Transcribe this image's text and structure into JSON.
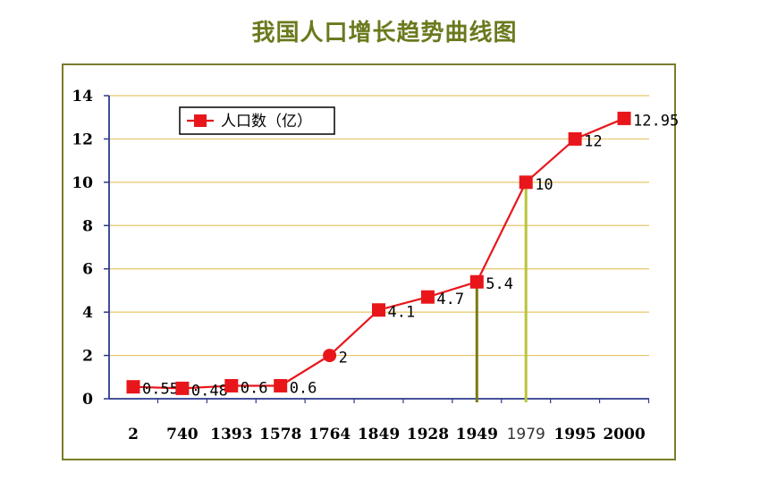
{
  "chart_data": {
    "type": "line",
    "title": "我国人口增长趋势曲线图",
    "categories": [
      "2",
      "740",
      "1393",
      "1578",
      "1764",
      "1849",
      "1928",
      "1949",
      "1979",
      "1995",
      "2000"
    ],
    "series": [
      {
        "name": "人口数（亿）",
        "values": [
          0.55,
          0.48,
          0.6,
          0.6,
          2,
          4.1,
          4.7,
          5.4,
          10,
          12,
          12.95
        ],
        "labels": [
          "0.55",
          "0.48",
          "0.6",
          "0.6",
          "2",
          "4.1",
          "4.7",
          "5.4",
          "10",
          "12",
          "12.95"
        ],
        "color": "#e8161b"
      }
    ],
    "yticks": [
      "0",
      "2",
      "4",
      "6",
      "8",
      "10",
      "12",
      "14"
    ],
    "ylim": [
      0,
      14
    ],
    "grid": true,
    "grid_color": "#e8c56a",
    "legend_position": "top-left",
    "highlight_lines": [
      {
        "category": "1949",
        "color": "#7b7a12"
      },
      {
        "category": "1979",
        "color": "#b9c43a"
      }
    ]
  }
}
